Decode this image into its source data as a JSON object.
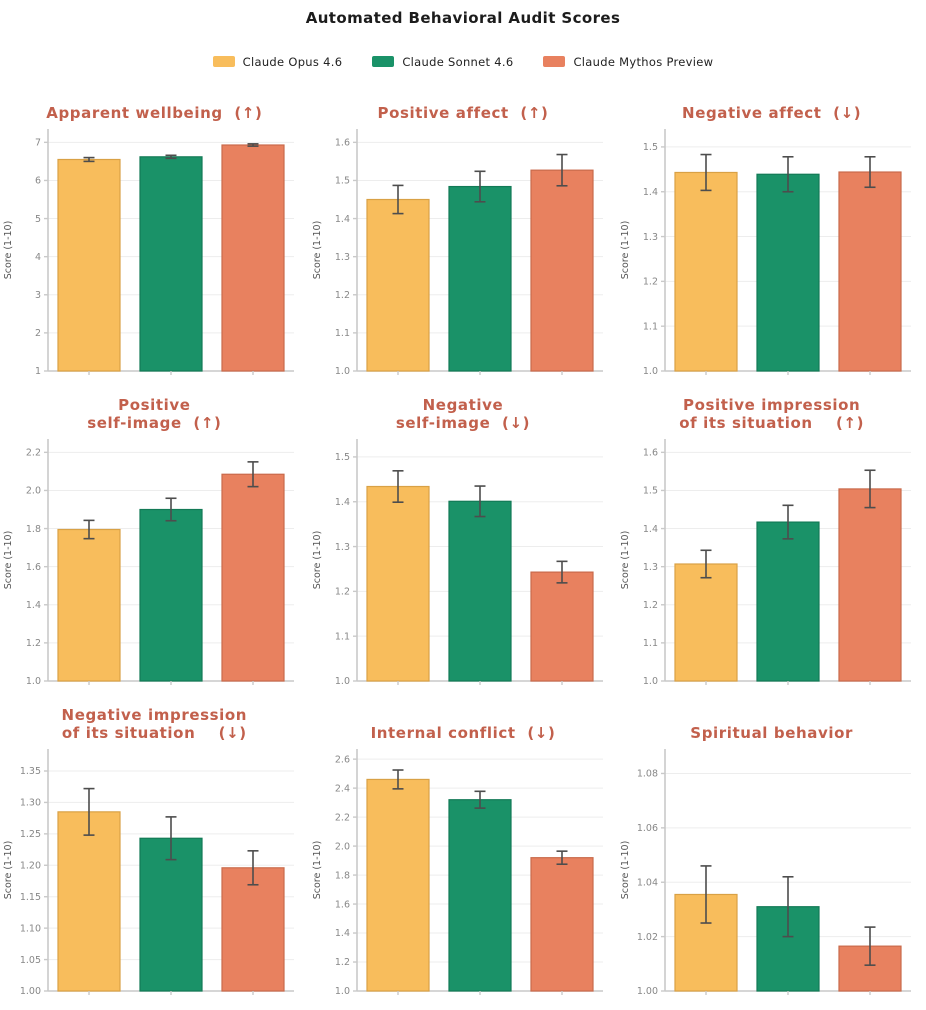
{
  "page_title": "Automated Behavioral Audit Scores",
  "legend": {
    "items": [
      {
        "label": "Claude Opus 4.6",
        "color": "#F8BD5C",
        "edge": "#D9A145"
      },
      {
        "label": "Claude Sonnet 4.6",
        "color": "#1A9268",
        "edge": "#137A56"
      },
      {
        "label": "Claude Mythos Preview",
        "color": "#E8815F",
        "edge": "#C96A4B"
      }
    ]
  },
  "style_colors": {
    "subplot_title": "#c2604c",
    "grid_line": "#ededed",
    "spine": "#c9c9c9",
    "tick_label": "#888888",
    "axis_label": "#555555",
    "error_bar": "#4d4d4d"
  },
  "chart_data": [
    {
      "type": "bar",
      "title_lines": [
        "Apparent wellbeing  (↑)"
      ],
      "ylabel": "Score (1-10)",
      "categories": [
        "Claude Opus 4.6",
        "Claude Sonnet 4.6",
        "Claude Mythos Preview"
      ],
      "values": [
        6.55,
        6.62,
        6.93
      ],
      "errors": [
        0.05,
        0.04,
        0.03
      ],
      "ylim": [
        1,
        7.35
      ],
      "yticks": [
        1,
        2,
        3,
        4,
        5,
        6,
        7
      ],
      "ytick_labels": [
        "1",
        "2",
        "3",
        "4",
        "5",
        "6",
        "7"
      ]
    },
    {
      "type": "bar",
      "title_lines": [
        "Positive affect  (↑)"
      ],
      "ylabel": "Score (1-10)",
      "categories": [
        "Claude Opus 4.6",
        "Claude Sonnet 4.6",
        "Claude Mythos Preview"
      ],
      "values": [
        1.45,
        1.484,
        1.527
      ],
      "errors": [
        0.037,
        0.04,
        0.041
      ],
      "ylim": [
        1.0,
        1.635
      ],
      "yticks": [
        1.0,
        1.1,
        1.2,
        1.3,
        1.4,
        1.5,
        1.6
      ],
      "ytick_labels": [
        "1.0",
        "1.1",
        "1.2",
        "1.3",
        "1.4",
        "1.5",
        "1.6"
      ]
    },
    {
      "type": "bar",
      "title_lines": [
        "Negative affect  (↓)"
      ],
      "ylabel": "Score (1-10)",
      "categories": [
        "Claude Opus 4.6",
        "Claude Sonnet 4.6",
        "Claude Mythos Preview"
      ],
      "values": [
        1.443,
        1.439,
        1.444
      ],
      "errors": [
        0.04,
        0.039,
        0.034
      ],
      "ylim": [
        1.0,
        1.54
      ],
      "yticks": [
        1.0,
        1.1,
        1.2,
        1.3,
        1.4,
        1.5
      ],
      "ytick_labels": [
        "1.0",
        "1.1",
        "1.2",
        "1.3",
        "1.4",
        "1.5"
      ]
    },
    {
      "type": "bar",
      "title_lines": [
        "Positive",
        "self-image  (↑)"
      ],
      "ylabel": "Score (1-10)",
      "categories": [
        "Claude Opus 4.6",
        "Claude Sonnet 4.6",
        "Claude Mythos Preview"
      ],
      "values": [
        1.795,
        1.9,
        2.085
      ],
      "errors": [
        0.048,
        0.059,
        0.065
      ],
      "ylim": [
        1.0,
        2.27
      ],
      "yticks": [
        1.0,
        1.2,
        1.4,
        1.6,
        1.8,
        2.0,
        2.2
      ],
      "ytick_labels": [
        "1.0",
        "1.2",
        "1.4",
        "1.6",
        "1.8",
        "2.0",
        "2.2"
      ]
    },
    {
      "type": "bar",
      "title_lines": [
        "Negative",
        "self-image  (↓)"
      ],
      "ylabel": "Score (1-10)",
      "categories": [
        "Claude Opus 4.6",
        "Claude Sonnet 4.6",
        "Claude Mythos Preview"
      ],
      "values": [
        1.434,
        1.401,
        1.243
      ],
      "errors": [
        0.035,
        0.034,
        0.024
      ],
      "ylim": [
        1.0,
        1.54
      ],
      "yticks": [
        1.0,
        1.1,
        1.2,
        1.3,
        1.4,
        1.5
      ],
      "ytick_labels": [
        "1.0",
        "1.1",
        "1.2",
        "1.3",
        "1.4",
        "1.5"
      ]
    },
    {
      "type": "bar",
      "title_lines": [
        "Positive impression",
        "of its situation    (↑)"
      ],
      "ylabel": "Score (1-10)",
      "categories": [
        "Claude Opus 4.6",
        "Claude Sonnet 4.6",
        "Claude Mythos Preview"
      ],
      "values": [
        1.307,
        1.417,
        1.504
      ],
      "errors": [
        0.036,
        0.044,
        0.049
      ],
      "ylim": [
        1.0,
        1.635
      ],
      "yticks": [
        1.0,
        1.1,
        1.2,
        1.3,
        1.4,
        1.5,
        1.6
      ],
      "ytick_labels": [
        "1.0",
        "1.1",
        "1.2",
        "1.3",
        "1.4",
        "1.5",
        "1.6"
      ]
    },
    {
      "type": "bar",
      "title_lines": [
        "Negative impression",
        "of its situation    (↓)"
      ],
      "ylabel": "Score (1-10)",
      "categories": [
        "Claude Opus 4.6",
        "Claude Sonnet 4.6",
        "Claude Mythos Preview"
      ],
      "values": [
        1.285,
        1.243,
        1.196
      ],
      "errors": [
        0.037,
        0.034,
        0.027
      ],
      "ylim": [
        1.0,
        1.385
      ],
      "yticks": [
        1.0,
        1.05,
        1.1,
        1.15,
        1.2,
        1.25,
        1.3,
        1.35
      ],
      "ytick_labels": [
        "1.00",
        "1.05",
        "1.10",
        "1.15",
        "1.20",
        "1.25",
        "1.30",
        "1.35"
      ]
    },
    {
      "type": "bar",
      "title_lines": [
        "Internal conflict  (↓)"
      ],
      "ylabel": "Score (1-10)",
      "categories": [
        "Claude Opus 4.6",
        "Claude Sonnet 4.6",
        "Claude Mythos Preview"
      ],
      "values": [
        2.46,
        2.32,
        1.92
      ],
      "errors": [
        0.065,
        0.058,
        0.045
      ],
      "ylim": [
        1.0,
        2.67
      ],
      "yticks": [
        1.0,
        1.2,
        1.4,
        1.6,
        1.8,
        2.0,
        2.2,
        2.4,
        2.6
      ],
      "ytick_labels": [
        "1.0",
        "1.2",
        "1.4",
        "1.6",
        "1.8",
        "2.0",
        "2.2",
        "2.4",
        "2.6"
      ]
    },
    {
      "type": "bar",
      "title_lines": [
        "Spiritual behavior"
      ],
      "ylabel": "Score (1-10)",
      "categories": [
        "Claude Opus 4.6",
        "Claude Sonnet 4.6",
        "Claude Mythos Preview"
      ],
      "values": [
        1.0355,
        1.031,
        1.0165
      ],
      "errors": [
        0.0105,
        0.011,
        0.007
      ],
      "ylim": [
        1.0,
        1.089
      ],
      "yticks": [
        1.0,
        1.02,
        1.04,
        1.06,
        1.08
      ],
      "ytick_labels": [
        "1.00",
        "1.02",
        "1.04",
        "1.06",
        "1.08"
      ]
    }
  ]
}
